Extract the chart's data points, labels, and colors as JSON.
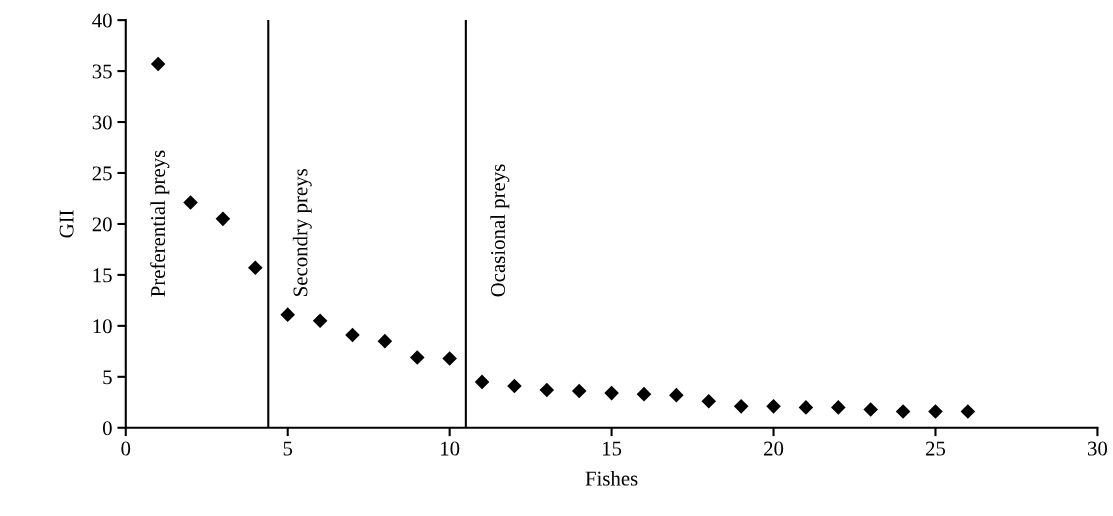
{
  "chart_data": {
    "type": "scatter",
    "xlabel": "Fishes",
    "ylabel": "GII",
    "x": [
      1,
      2,
      3,
      4,
      5,
      6,
      7,
      8,
      9,
      10,
      11,
      12,
      13,
      14,
      15,
      16,
      17,
      18,
      19,
      20,
      21,
      22,
      23,
      24,
      25,
      26
    ],
    "series": [
      {
        "color": "#000000",
        "values": [
          35.7,
          22.1,
          20.5,
          15.7,
          11.1,
          10.5,
          9.1,
          8.5,
          6.9,
          6.8,
          4.5,
          4.1,
          3.7,
          3.6,
          3.4,
          3.3,
          3.2,
          2.6,
          2.1,
          2.1,
          2.0,
          2.0,
          1.8,
          1.6,
          1.6,
          1.6
        ]
      }
    ],
    "marker": "diamond",
    "xlim": [
      0,
      30
    ],
    "xticks": [
      0,
      5,
      10,
      15,
      20,
      25,
      30
    ],
    "ylim": [
      0,
      40
    ],
    "yticks": [
      0,
      5,
      10,
      15,
      20,
      25,
      30,
      35,
      40
    ],
    "ref_lines": [
      {
        "axis": "x",
        "value": 4.4,
        "color": "#000000"
      },
      {
        "axis": "x",
        "value": 10.5,
        "color": "#000000"
      }
    ],
    "annotations": [
      "Preferential preys",
      "Secondry preys",
      "Ocasional preys"
    ],
    "grid": false,
    "legend": false
  }
}
